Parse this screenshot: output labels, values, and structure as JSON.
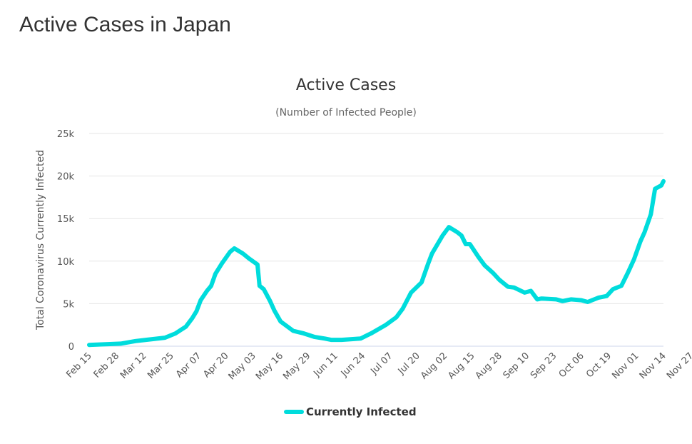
{
  "page": {
    "title": "Active Cases in Japan"
  },
  "chart_data": {
    "type": "line",
    "title": "Active Cases",
    "subtitle": "(Number of Infected People)",
    "xlabel": "",
    "ylabel": "Total Coronavirus Currently Infected",
    "x_start_date": "Feb 15",
    "x_unit": "days since Feb 15",
    "xlim": [
      0,
      273
    ],
    "ylim": [
      0,
      25000
    ],
    "grid": true,
    "legend_position": "bottom-center",
    "x_tick_labels": [
      "Feb 15",
      "Feb 28",
      "Mar 12",
      "Mar 25",
      "Apr 07",
      "Apr 20",
      "May 03",
      "May 16",
      "May 29",
      "Jun 11",
      "Jun 24",
      "Jul 07",
      "Jul 20",
      "Aug 02",
      "Aug 15",
      "Aug 28",
      "Sep 10",
      "Sep 23",
      "Oct 06",
      "Oct 19",
      "Nov 01",
      "Nov 14",
      "Nov 27"
    ],
    "y_ticks": [
      0,
      5000,
      10000,
      15000,
      20000,
      25000
    ],
    "y_tick_labels": [
      "0",
      "5k",
      "10k",
      "15k",
      "20k",
      "25k"
    ],
    "series": [
      {
        "name": "Currently Infected",
        "color": "#00dcdc",
        "points": [
          [
            0,
            150
          ],
          [
            15,
            300
          ],
          [
            22,
            600
          ],
          [
            27,
            750
          ],
          [
            36,
            1000
          ],
          [
            41,
            1500
          ],
          [
            46,
            2300
          ],
          [
            49,
            3300
          ],
          [
            51,
            4100
          ],
          [
            53,
            5400
          ],
          [
            56,
            6500
          ],
          [
            58,
            7100
          ],
          [
            60,
            8500
          ],
          [
            63,
            9700
          ],
          [
            67,
            11100
          ],
          [
            69,
            11500
          ],
          [
            73,
            10900
          ],
          [
            76,
            10300
          ],
          [
            80,
            9600
          ],
          [
            81,
            7100
          ],
          [
            83,
            6700
          ],
          [
            86,
            5300
          ],
          [
            88,
            4200
          ],
          [
            91,
            2900
          ],
          [
            97,
            1800
          ],
          [
            102,
            1500
          ],
          [
            107,
            1100
          ],
          [
            112,
            900
          ],
          [
            115,
            750
          ],
          [
            120,
            750
          ],
          [
            129,
            900
          ],
          [
            134,
            1500
          ],
          [
            141,
            2500
          ],
          [
            146,
            3400
          ],
          [
            149,
            4400
          ],
          [
            153,
            6300
          ],
          [
            158,
            7500
          ],
          [
            161,
            9600
          ],
          [
            163,
            10900
          ],
          [
            168,
            13000
          ],
          [
            171,
            14000
          ],
          [
            175,
            13400
          ],
          [
            177,
            13000
          ],
          [
            179,
            12000
          ],
          [
            181,
            12000
          ],
          [
            185,
            10500
          ],
          [
            188,
            9500
          ],
          [
            192,
            8600
          ],
          [
            195,
            7800
          ],
          [
            199,
            7000
          ],
          [
            202,
            6900
          ],
          [
            207,
            6300
          ],
          [
            210,
            6500
          ],
          [
            213,
            5500
          ],
          [
            215,
            5600
          ],
          [
            222,
            5500
          ],
          [
            225,
            5300
          ],
          [
            229,
            5500
          ],
          [
            234,
            5400
          ],
          [
            237,
            5200
          ],
          [
            242,
            5700
          ],
          [
            246,
            5900
          ],
          [
            249,
            6700
          ],
          [
            253,
            7100
          ],
          [
            256,
            8600
          ],
          [
            259,
            10200
          ],
          [
            262,
            12300
          ],
          [
            264,
            13400
          ],
          [
            267,
            15500
          ],
          [
            269,
            18500
          ],
          [
            272,
            18900
          ],
          [
            273,
            19400
          ]
        ]
      }
    ]
  }
}
